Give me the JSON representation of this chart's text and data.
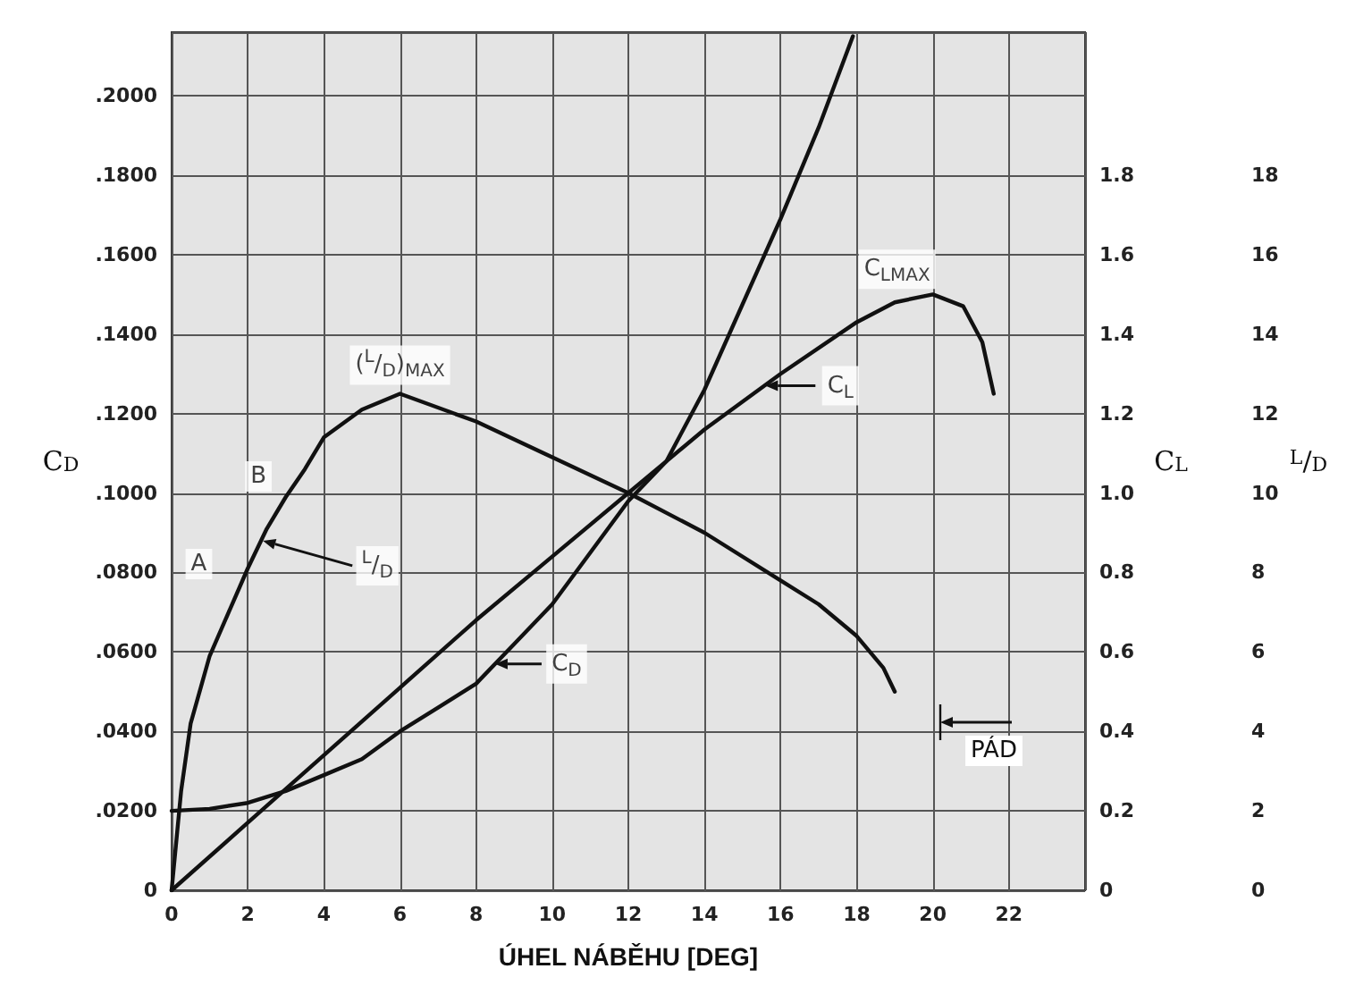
{
  "chart_data": {
    "type": "line",
    "xlabel": "ÚHEL NÁBĚHU [DEG]",
    "ylabel": "C$_{D}$",
    "y2label": "C$_{L}$",
    "y3label": "$^{L}$/$_{D}$",
    "xlim": [
      0,
      24
    ],
    "xticks": [
      0,
      2,
      4,
      6,
      8,
      10,
      12,
      14,
      16,
      18,
      20,
      22
    ],
    "ylim": [
      0,
      0.216
    ],
    "yticks": [
      0,
      {
        "value": 0.02,
        "label": ".0200"
      },
      {
        "value": 0.04,
        "label": ".0400"
      },
      {
        "value": 0.06,
        "label": ".0600"
      },
      {
        "value": 0.08,
        "label": ".0800"
      },
      {
        "value": 0.1,
        "label": ".1000"
      },
      {
        "value": 0.12,
        "label": ".1200"
      },
      {
        "value": 0.14,
        "label": ".1400"
      },
      {
        "value": 0.16,
        "label": ".1600"
      },
      {
        "value": 0.18,
        "label": ".1800"
      },
      {
        "value": 0.2,
        "label": ".2000"
      }
    ],
    "y2lim": [
      0,
      2.16
    ],
    "y2ticks": [
      0,
      0.2,
      0.4,
      0.6,
      0.8,
      {
        "value": 1,
        "label": "1.0"
      },
      1.2,
      1.4,
      1.6,
      1.8
    ],
    "y3lim": [
      0,
      21.6
    ],
    "y3ticks": [
      0,
      2,
      4,
      6,
      8,
      10,
      12,
      14,
      16,
      18
    ],
    "grid": true,
    "marker": "none",
    "line_style": "solid",
    "series": [
      {
        "color": "#111111",
        "x": [
          0,
          1,
          2,
          3,
          4,
          5,
          6,
          7,
          8,
          9,
          10,
          11,
          12,
          13,
          14,
          16,
          17,
          17.9
        ],
        "values": [
          0.02,
          0.0205,
          0.022,
          0.025,
          0.029,
          0.033,
          0.04,
          0.046,
          0.052,
          0.062,
          0.072,
          0.085,
          0.098,
          0.108,
          0.126,
          0.169,
          0.192,
          0.215
        ]
      },
      {
        "color": "#111111",
        "axis": "y2",
        "x": [
          0,
          2,
          4,
          6,
          8,
          10,
          12,
          14,
          16,
          18,
          19,
          20,
          20.8,
          21.3,
          21.6
        ],
        "values": [
          0,
          0.17,
          0.34,
          0.51,
          0.68,
          0.84,
          1.0,
          1.16,
          1.3,
          1.43,
          1.48,
          1.5,
          1.47,
          1.38,
          1.25
        ]
      },
      {
        "color": "#111111",
        "axis": "y3",
        "x": [
          0,
          0.25,
          0.5,
          1,
          1.5,
          2,
          2.5,
          3,
          3.5,
          4,
          5,
          6,
          8,
          10,
          12,
          14,
          16,
          17,
          18,
          18.7,
          19
        ],
        "values": [
          0,
          2.5,
          4.2,
          5.9,
          7.0,
          8.1,
          9.1,
          9.9,
          10.6,
          11.4,
          12.1,
          12.5,
          11.8,
          10.9,
          10.0,
          9.0,
          7.8,
          7.2,
          6.4,
          5.6,
          5.0
        ]
      }
    ],
    "annotations": [
      {
        "text": "B",
        "x": 2.75,
        "y": 0.097
      },
      {
        "text": "A",
        "x": 1.75,
        "y": 0.0745
      },
      {
        "text": "$^{L}$/$_{D}$",
        "x": 2.4,
        "y": 0.088
      },
      {
        "text": "($^{L}$/$_{D}$)$_{MAX}$",
        "x": 6,
        "y": 0.125
      },
      {
        "text": "C$_{LMAX}$",
        "x": 20,
        "y": 0.15
      },
      {
        "text": "C$_{L}$",
        "x": 15.6,
        "y": 0.127
      },
      {
        "text": "C$_{D}$",
        "x": 8.5,
        "y": 0.057
      },
      "PÁD"
    ]
  }
}
